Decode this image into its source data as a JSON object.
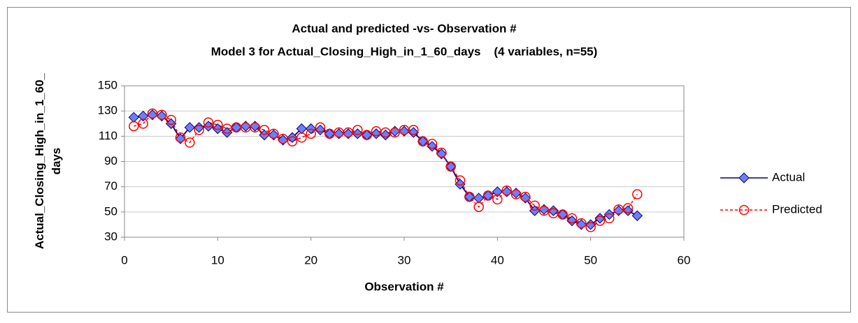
{
  "chart_data": {
    "type": "line",
    "title": "Actual and predicted -vs- Observation #",
    "subtitle": "Model 3 for Actual_Closing_High_in_1_60_days    (4 variables, n=55)",
    "xlabel": "Observation #",
    "ylabel": "Actual_Closing_High_in_1_60_days",
    "x": [
      1,
      2,
      3,
      4,
      5,
      6,
      7,
      8,
      9,
      10,
      11,
      12,
      13,
      14,
      15,
      16,
      17,
      18,
      19,
      20,
      21,
      22,
      23,
      24,
      25,
      26,
      27,
      28,
      29,
      30,
      31,
      32,
      33,
      34,
      35,
      36,
      37,
      38,
      39,
      40,
      41,
      42,
      43,
      44,
      45,
      46,
      47,
      48,
      49,
      50,
      51,
      52,
      53,
      54,
      55
    ],
    "series": [
      {
        "name": "Actual",
        "color": "#00008b",
        "values": [
          125,
          126,
          127,
          126,
          120,
          108,
          117,
          117,
          118,
          116,
          113,
          117,
          118,
          118,
          111,
          111,
          107,
          109,
          116,
          116,
          115,
          112,
          112,
          112,
          112,
          111,
          112,
          111,
          114,
          114,
          113,
          106,
          102,
          96,
          86,
          72,
          62,
          61,
          63,
          66,
          66,
          65,
          61,
          51,
          52,
          51,
          48,
          43,
          40,
          40,
          45,
          48,
          51,
          51,
          47
        ]
      },
      {
        "name": "Predicted",
        "color": "#ff0000",
        "values": [
          118,
          120,
          128,
          127,
          123,
          109,
          105,
          115,
          121,
          119,
          116,
          117,
          117,
          117,
          115,
          112,
          108,
          106,
          109,
          112,
          117,
          112,
          113,
          113,
          115,
          111,
          114,
          113,
          113,
          115,
          115,
          106,
          104,
          97,
          86,
          75,
          62,
          54,
          63,
          60,
          67,
          64,
          62,
          55,
          51,
          49,
          48,
          45,
          41,
          38,
          43,
          45,
          52,
          53,
          64
        ]
      }
    ],
    "xlim": [
      0,
      60
    ],
    "xticks": [
      0,
      10,
      20,
      30,
      40,
      50,
      60
    ],
    "ylim": [
      30,
      150
    ],
    "yticks": [
      30,
      50,
      70,
      90,
      110,
      130,
      150
    ],
    "grid": true,
    "legend": "right"
  }
}
